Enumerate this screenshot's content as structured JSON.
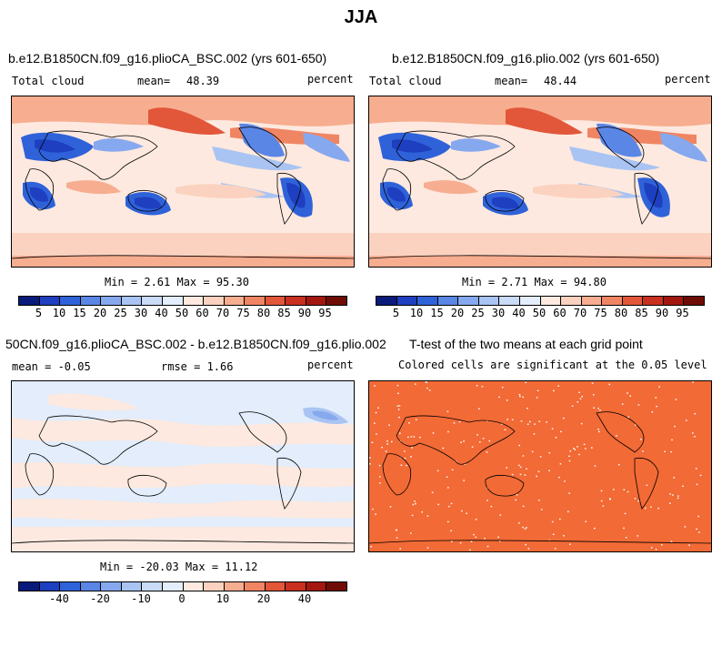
{
  "figure": {
    "title": "JJA"
  },
  "panels": {
    "p1": {
      "title": "b.e12.B1850CN.f09_g16.plioCA_BSC.002 (yrs 601-650)",
      "variable": "Total cloud",
      "mean_label": "mean=",
      "mean_value": "48.39",
      "units": "percent",
      "min_max": "Min =    2.61 Max =  95.30"
    },
    "p2": {
      "title": "b.e12.B1850CN.f09_g16.plio.002 (yrs 601-650)",
      "variable": "Total cloud",
      "mean_label": "mean=",
      "mean_value": "48.44",
      "units": "percent",
      "min_max": "Min =    2.71 Max =  94.80"
    },
    "p3": {
      "title": "50CN.f09_g16.plioCA_BSC.002 - b.e12.B1850CN.f09_g16.plio.002",
      "mean_text": "mean =  -0.05",
      "rmse_text": "rmse =   1.66",
      "units": "percent",
      "min_max": "Min = -20.03 Max =  11.12"
    },
    "p4": {
      "title": "T-test of the two means at each grid point",
      "subtitle": "Colored cells are significant at the 0.05 level"
    }
  },
  "colorbars": {
    "abs_labels": [
      "5",
      "10",
      "15",
      "20",
      "25",
      "30",
      "40",
      "50",
      "60",
      "70",
      "75",
      "80",
      "85",
      "90",
      "95"
    ],
    "diff_labels": [
      "-40",
      "-20",
      "-10",
      "0",
      "10",
      "20",
      "40"
    ],
    "colors": [
      "#0a1a7a",
      "#1e3fbf",
      "#2f62d9",
      "#5a86e6",
      "#86a8ee",
      "#a9c4f2",
      "#c9dbf7",
      "#e3edfb",
      "#fde9df",
      "#fbd2bf",
      "#f7ad8f",
      "#f08563",
      "#e2563a",
      "#c9301f",
      "#a4170f",
      "#6e0c05"
    ]
  },
  "colors": {
    "ttest_fill": "#f26a35"
  }
}
